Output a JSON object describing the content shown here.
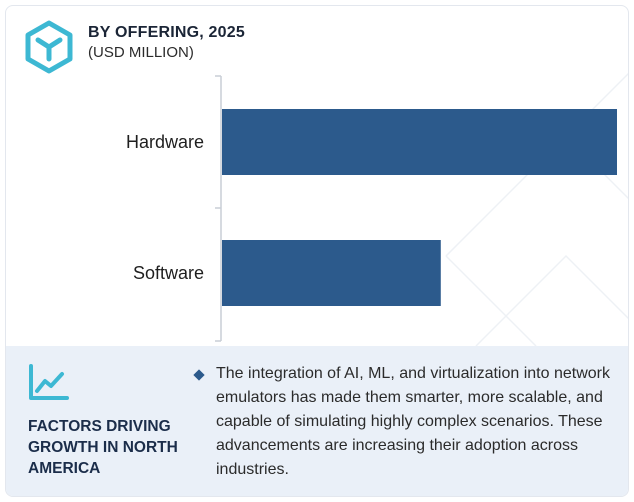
{
  "header": {
    "title": "BY OFFERING, 2025",
    "subtitle": "(USD MILLION)",
    "logo_icon": "hexagon-cube-icon"
  },
  "colors": {
    "bar": "#2c5a8c",
    "logo": "#3db8d3",
    "axis": "#c9ced6",
    "footer_bg": "#eaf0f8",
    "icon": "#3db8d3"
  },
  "chart_data": {
    "type": "bar",
    "orientation": "horizontal",
    "categories": [
      "Hardware",
      "Software"
    ],
    "values": [
      100,
      55.5
    ],
    "title": "BY OFFERING, 2025",
    "subtitle": "(USD MILLION)",
    "xlim": [
      0,
      100
    ],
    "grid": false,
    "legend": "none"
  },
  "footer": {
    "icon": "trend-line-icon",
    "factors_title": "FACTORS DRIVING GROWTH IN NORTH AMERICA",
    "bullet": "The integration of AI, ML, and virtualization into network emulators has made them smarter, more scalable, and capable of simulating highly complex scenarios. These advancements are increasing their adoption across industries."
  }
}
